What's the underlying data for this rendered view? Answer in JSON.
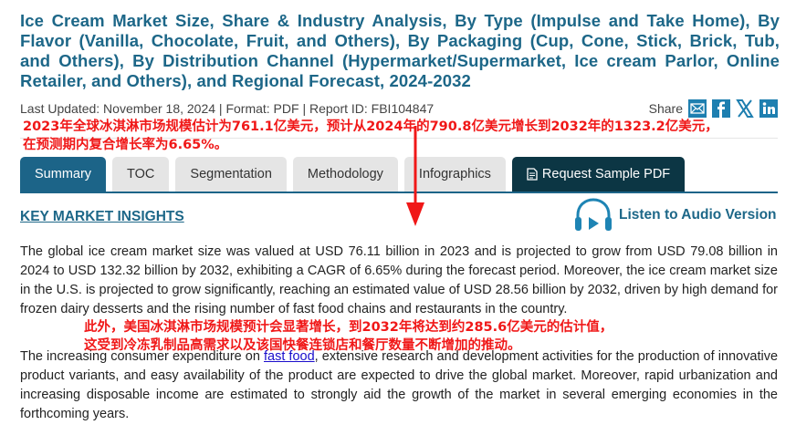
{
  "title": "Ice Cream Market Size, Share & Industry Analysis, By Type (Impulse and Take Home), By Flavor (Vanilla, Chocolate, Fruit, and Others), By Packaging (Cup, Cone, Stick, Brick, Tub, and Others), By Distribution Channel (Hypermarket/Supermarket, Ice cream Parlor, Online Retailer, and Others), and Regional Forecast, 2024-2032",
  "meta": "Last Updated: November 18, 2024 | Format: PDF | Report ID: FBI104847",
  "share": {
    "label": "Share",
    "icons": [
      "email-icon",
      "facebook-icon",
      "x-icon",
      "linkedin-icon"
    ]
  },
  "annotations": {
    "note1_line1": "2023年全球冰淇淋市场规模估计为761.1亿美元，预计从2024年的790.8亿美元增长到2032年的1323.2亿美元，",
    "note1_line2": "在预测期内复合增长率为6.65%。",
    "note2_line1": "此外，美国冰淇淋市场规模预计会显著增长，到2032年将达到约285.6亿美元的估计值，",
    "note2_line2": "这受到冷冻乳制品高需求以及该国快餐连锁店和餐厅数量不断增加的推动。",
    "color": "#f01818"
  },
  "tabs": [
    {
      "label": "Summary",
      "active": true
    },
    {
      "label": "TOC"
    },
    {
      "label": "Segmentation"
    },
    {
      "label": "Methodology"
    },
    {
      "label": "Infographics"
    },
    {
      "label": "Request Sample PDF",
      "icon": "document-icon"
    }
  ],
  "section": {
    "heading": "KEY MARKET INSIGHTS",
    "audio_label": "Listen to Audio Version",
    "p1": "The global ice cream market size was valued at USD 76.11 billion in 2023 and is projected to grow from USD 79.08 billion in 2024 to USD 132.32 billion by 2032, exhibiting a CAGR of 6.65% during the forecast period. Moreover, the ice cream market size in the U.S. is projected to grow significantly, reaching an estimated value of USD 28.56 billion by 2032, driven by high demand for frozen dairy desserts and the rising number of fast food chains and restaurants in the country.",
    "p2_before": "The increasing consumer expenditure on ",
    "p2_link": "fast food",
    "p2_after": ", extensive research and development activities for the production of innovative product variants, and easy availability of the product are expected to drive the global market. Moreover, rapid urbanization and increasing disposable income are estimated to strongly aid the growth of the market in several emerging economies in the forthcoming years."
  },
  "colors": {
    "brand": "#1d6788",
    "active_tab": "#1c6488",
    "dark_tab": "#0c3644"
  }
}
